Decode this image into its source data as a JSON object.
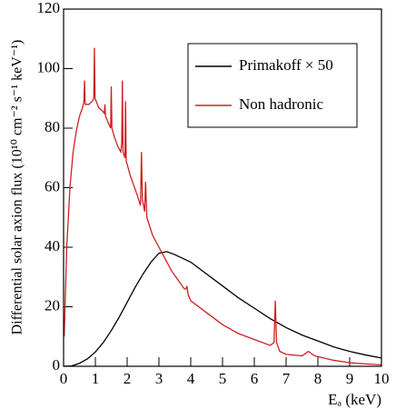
{
  "chart_data": {
    "type": "line",
    "xlabel": "Eₐ (keV)",
    "ylabel": "Differential solar axion flux (10¹⁰ cm⁻² s⁻¹ keV⁻¹)",
    "xlim": [
      0,
      10
    ],
    "xticks": [
      0,
      1,
      2,
      3,
      4,
      5,
      6,
      7,
      8,
      9,
      10
    ],
    "ylim": [
      0,
      120
    ],
    "yticks": [
      0,
      20,
      40,
      60,
      80,
      100,
      120
    ],
    "legend": "upper right",
    "series": [
      {
        "name": "Primakoff × 50",
        "color": "#000000",
        "x": [
          0,
          0.25,
          0.5,
          0.75,
          1,
          1.25,
          1.5,
          1.75,
          2,
          2.25,
          2.5,
          2.75,
          3,
          3.25,
          3.5,
          4,
          4.5,
          5,
          5.5,
          6,
          6.5,
          7,
          7.5,
          8,
          8.5,
          9,
          9.5,
          10
        ],
        "values": [
          0,
          0.1,
          1,
          2.5,
          4.8,
          8,
          12,
          16.5,
          21.5,
          26.5,
          31,
          35,
          38,
          38.5,
          37.5,
          35,
          31,
          27,
          23,
          19.5,
          16,
          13,
          10.5,
          8.5,
          6.5,
          5,
          3.8,
          2.8
        ]
      },
      {
        "name": "Non hadronic",
        "color": "#cc2222",
        "x": [
          0.02,
          0.1,
          0.2,
          0.3,
          0.4,
          0.5,
          0.6,
          0.64,
          0.66,
          0.68,
          0.8,
          0.9,
          0.95,
          0.97,
          0.99,
          1.1,
          1.2,
          1.28,
          1.3,
          1.32,
          1.4,
          1.48,
          1.5,
          1.52,
          1.6,
          1.7,
          1.8,
          1.83,
          1.85,
          1.87,
          1.93,
          1.95,
          1.97,
          2.1,
          2.3,
          2.42,
          2.45,
          2.48,
          2.55,
          2.58,
          2.6,
          2.62,
          2.8,
          3.0,
          3.2,
          3.4,
          3.6,
          3.8,
          3.85,
          3.88,
          3.92,
          4.0,
          4.5,
          5.0,
          5.5,
          6.0,
          6.5,
          6.62,
          6.66,
          6.7,
          6.8,
          7.0,
          7.5,
          7.7,
          7.9,
          8.5,
          9,
          9.5,
          10
        ],
        "values": [
          10,
          40,
          60,
          72,
          79,
          84,
          87,
          89,
          96,
          88,
          88,
          89,
          90,
          107,
          90,
          87,
          86,
          85,
          88,
          84,
          82,
          80,
          94,
          80,
          77,
          74,
          72,
          75,
          96,
          72,
          70,
          89,
          69,
          64,
          58,
          54,
          72,
          56,
          52,
          62,
          56,
          50,
          44,
          40,
          36,
          32,
          29,
          26,
          26,
          27,
          24,
          22,
          18,
          14,
          11,
          9,
          7,
          8,
          22,
          8,
          5,
          4,
          3.5,
          5,
          3.5,
          2,
          1.2,
          0.8,
          0.5
        ]
      }
    ]
  }
}
